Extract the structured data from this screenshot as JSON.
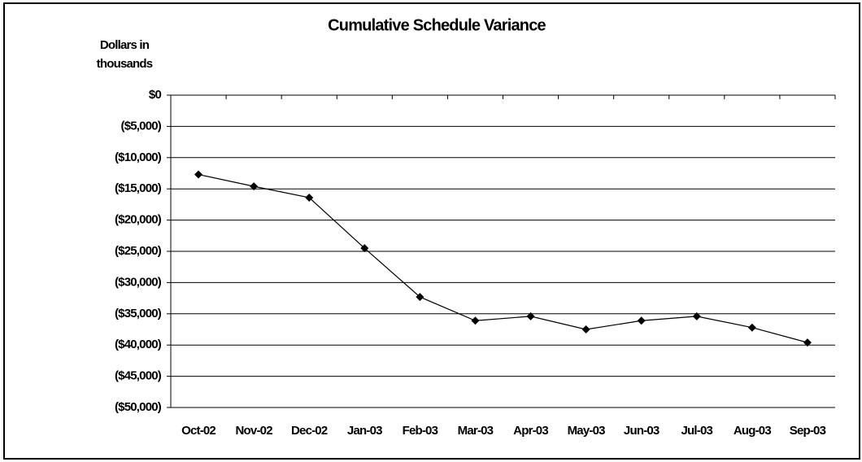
{
  "chart_data": {
    "type": "line",
    "title": "Cumulative Schedule Variance",
    "y_label": "Dollars in thousands",
    "categories": [
      "Oct-02",
      "Nov-02",
      "Dec-02",
      "Jan-03",
      "Feb-03",
      "Mar-03",
      "Apr-03",
      "May-03",
      "Jun-03",
      "Jul-03",
      "Aug-03",
      "Sep-03"
    ],
    "series": [
      {
        "name": "Cumulative Schedule Variance",
        "color": "#000000",
        "values": [
          -12700,
          -14600,
          -16400,
          -24500,
          -32300,
          -36100,
          -35400,
          -37500,
          -36100,
          -35400,
          -37200,
          -39600
        ]
      }
    ],
    "ylim": [
      -50000,
      0
    ],
    "yticks": [
      {
        "value": 0,
        "label": "$0"
      },
      {
        "value": -5000,
        "label": "($5,000)"
      },
      {
        "value": -10000,
        "label": "($10,000)"
      },
      {
        "value": -15000,
        "label": "($15,000)"
      },
      {
        "value": -20000,
        "label": "($20,000)"
      },
      {
        "value": -25000,
        "label": "($25,000)"
      },
      {
        "value": -30000,
        "label": "($30,000)"
      },
      {
        "value": -35000,
        "label": "($35,000)"
      },
      {
        "value": -40000,
        "label": "($40,000)"
      },
      {
        "value": -45000,
        "label": "($45,000)"
      },
      {
        "value": -50000,
        "label": "($50,000)"
      }
    ],
    "grid": true
  }
}
